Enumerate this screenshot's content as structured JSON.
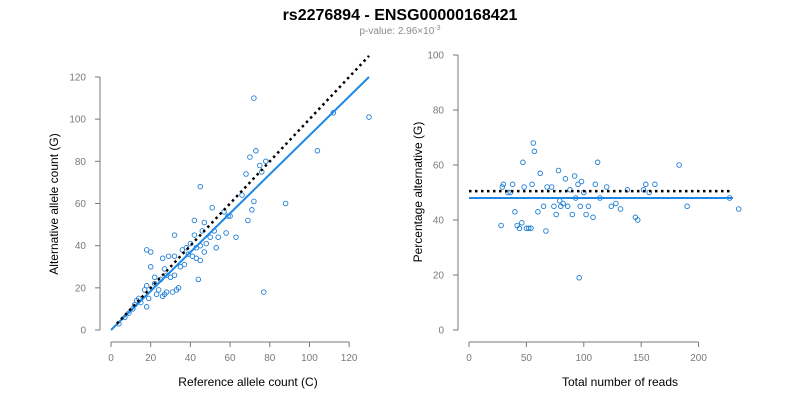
{
  "figure": {
    "title": "rs2276894 - ENSG00000168421",
    "pvalue_prefix": "p-value: 2.96×10",
    "pvalue_exponent": "-3"
  },
  "colors": {
    "points": "#1f7fd6",
    "fit": "#1f88e5",
    "reference": "#000000",
    "axis": "#7a7a7a"
  },
  "chart_data": [
    {
      "type": "scatter",
      "name": "left",
      "xlabel": "Reference allele count (C)",
      "ylabel": "Alternative allele count (G)",
      "xlim": [
        0,
        130
      ],
      "ylim": [
        0,
        120
      ],
      "xticks": [
        0,
        20,
        40,
        60,
        80,
        100,
        120
      ],
      "yticks": [
        0,
        20,
        40,
        60,
        80,
        100,
        120
      ],
      "points": [
        [
          4,
          3
        ],
        [
          7,
          6
        ],
        [
          9,
          8
        ],
        [
          11,
          10
        ],
        [
          12,
          12
        ],
        [
          13,
          14
        ],
        [
          14,
          15
        ],
        [
          15,
          13
        ],
        [
          17,
          19
        ],
        [
          18,
          21
        ],
        [
          18,
          11
        ],
        [
          18,
          38
        ],
        [
          19,
          15
        ],
        [
          20,
          37
        ],
        [
          20,
          30
        ],
        [
          22,
          25
        ],
        [
          22,
          22
        ],
        [
          23,
          17
        ],
        [
          24,
          19
        ],
        [
          25,
          24
        ],
        [
          26,
          34
        ],
        [
          26,
          16
        ],
        [
          27,
          29
        ],
        [
          27,
          17
        ],
        [
          28,
          18
        ],
        [
          28,
          26
        ],
        [
          29,
          35
        ],
        [
          30,
          25
        ],
        [
          31,
          18
        ],
        [
          32,
          35
        ],
        [
          32,
          45
        ],
        [
          32,
          26
        ],
        [
          33,
          19
        ],
        [
          34,
          20
        ],
        [
          35,
          30
        ],
        [
          36,
          38
        ],
        [
          37,
          31
        ],
        [
          38,
          39
        ],
        [
          39,
          36
        ],
        [
          40,
          41
        ],
        [
          41,
          35
        ],
        [
          42,
          52
        ],
        [
          42,
          45
        ],
        [
          43,
          34
        ],
        [
          43,
          39
        ],
        [
          44,
          24
        ],
        [
          45,
          33
        ],
        [
          45,
          68
        ],
        [
          45,
          40
        ],
        [
          46,
          47
        ],
        [
          47,
          51
        ],
        [
          47,
          37
        ],
        [
          48,
          41
        ],
        [
          50,
          44
        ],
        [
          51,
          58
        ],
        [
          52,
          47
        ],
        [
          53,
          39
        ],
        [
          54,
          44
        ],
        [
          57,
          56
        ],
        [
          58,
          46
        ],
        [
          59,
          54
        ],
        [
          60,
          54
        ],
        [
          63,
          44
        ],
        [
          66,
          64
        ],
        [
          68,
          74
        ],
        [
          69,
          52
        ],
        [
          70,
          82
        ],
        [
          71,
          57
        ],
        [
          72,
          61
        ],
        [
          72,
          110
        ],
        [
          73,
          85
        ],
        [
          75,
          78
        ],
        [
          76,
          75
        ],
        [
          77,
          18
        ],
        [
          78,
          80
        ],
        [
          88,
          60
        ],
        [
          104,
          85
        ],
        [
          112,
          103
        ],
        [
          130,
          101
        ]
      ],
      "fit_line": [
        [
          0,
          0
        ],
        [
          130,
          120
        ]
      ],
      "reference_line": [
        [
          3,
          3
        ],
        [
          130,
          130
        ]
      ]
    },
    {
      "type": "scatter",
      "name": "right",
      "xlabel": "Total number of reads",
      "ylabel": "Percentage alternative (G)",
      "xlim": [
        0,
        230
      ],
      "ylim": [
        0,
        100
      ],
      "xticks": [
        0,
        50,
        100,
        150,
        200
      ],
      "yticks": [
        0,
        20,
        40,
        60,
        80,
        100
      ],
      "points": [
        [
          28,
          38
        ],
        [
          29,
          52
        ],
        [
          30,
          53
        ],
        [
          34,
          50
        ],
        [
          36,
          50
        ],
        [
          38,
          53
        ],
        [
          40,
          43
        ],
        [
          42,
          38
        ],
        [
          44,
          37
        ],
        [
          46,
          39
        ],
        [
          47,
          61
        ],
        [
          48,
          52
        ],
        [
          50,
          37
        ],
        [
          52,
          37
        ],
        [
          54,
          37
        ],
        [
          55,
          53
        ],
        [
          56,
          68
        ],
        [
          57,
          65
        ],
        [
          60,
          43
        ],
        [
          62,
          57
        ],
        [
          65,
          45
        ],
        [
          67,
          36
        ],
        [
          68,
          52
        ],
        [
          72,
          52
        ],
        [
          74,
          45
        ],
        [
          76,
          42
        ],
        [
          78,
          58
        ],
        [
          79,
          47
        ],
        [
          80,
          45
        ],
        [
          82,
          46
        ],
        [
          84,
          55
        ],
        [
          86,
          45
        ],
        [
          88,
          51
        ],
        [
          90,
          42
        ],
        [
          92,
          56
        ],
        [
          93,
          48
        ],
        [
          95,
          53
        ],
        [
          96,
          19
        ],
        [
          97,
          45
        ],
        [
          98,
          54
        ],
        [
          100,
          50
        ],
        [
          102,
          42
        ],
        [
          104,
          45
        ],
        [
          108,
          41
        ],
        [
          110,
          53
        ],
        [
          112,
          61
        ],
        [
          114,
          48
        ],
        [
          120,
          52
        ],
        [
          124,
          45
        ],
        [
          128,
          46
        ],
        [
          132,
          44
        ],
        [
          138,
          51
        ],
        [
          145,
          41
        ],
        [
          147,
          40
        ],
        [
          152,
          51
        ],
        [
          154,
          53
        ],
        [
          157,
          50
        ],
        [
          162,
          53
        ],
        [
          183,
          60
        ],
        [
          190,
          45
        ],
        [
          227,
          48
        ],
        [
          235,
          44
        ]
      ],
      "fit_line": [
        [
          0,
          48
        ],
        [
          230,
          48
        ]
      ],
      "reference_line": [
        [
          0,
          50.5
        ],
        [
          230,
          50.5
        ]
      ]
    }
  ]
}
